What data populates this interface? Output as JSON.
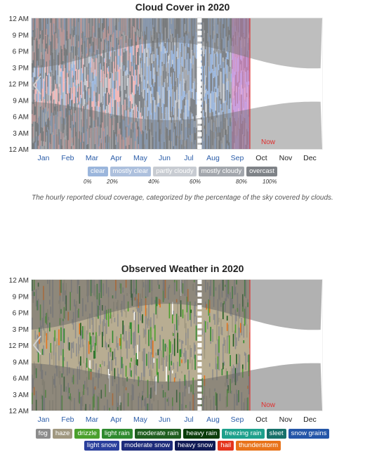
{
  "cloud_panel": {
    "title": "Cloud Cover in 2020",
    "y_tick_labels": [
      "12 AM",
      "9 PM",
      "6 PM",
      "3 PM",
      "12 PM",
      "9 AM",
      "6 AM",
      "3 AM",
      "12 AM"
    ],
    "x_tick_labels": [
      "Jan",
      "Feb",
      "Mar",
      "Apr",
      "May",
      "Jun",
      "Jul",
      "Aug",
      "Sep",
      "Oct",
      "Nov",
      "Dec"
    ],
    "now_label": "Now",
    "legend": [
      {
        "label": "clear",
        "color": "#9bb6dc"
      },
      {
        "label": "mostly clear",
        "color": "#adc0dd"
      },
      {
        "label": "partly cloudy",
        "color": "#c8ccd2"
      },
      {
        "label": "mostly cloudy",
        "color": "#a3a7ad"
      },
      {
        "label": "overcast",
        "color": "#7f8388"
      }
    ],
    "scale_labels": [
      "0%",
      "20%",
      "40%",
      "60%",
      "80%",
      "100%"
    ],
    "caption": "The hourly reported cloud coverage, categorized by the percentage of the sky covered by clouds."
  },
  "weather_panel": {
    "title": "Observed Weather in 2020",
    "y_tick_labels": [
      "12 AM",
      "9 PM",
      "6 PM",
      "3 PM",
      "12 PM",
      "9 AM",
      "6 AM",
      "3 AM",
      "12 AM"
    ],
    "x_tick_labels": [
      "Jan",
      "Feb",
      "Mar",
      "Apr",
      "May",
      "Jun",
      "Jul",
      "Aug",
      "Sep",
      "Oct",
      "Nov",
      "Dec"
    ],
    "now_label": "Now",
    "legend_row1": [
      {
        "label": "fog",
        "color": "#8c8c8c"
      },
      {
        "label": "haze",
        "color": "#a09880"
      },
      {
        "label": "drizzle",
        "color": "#4aa02c"
      },
      {
        "label": "light rain",
        "color": "#2f8a2f"
      },
      {
        "label": "moderate rain",
        "color": "#1f5e1f"
      },
      {
        "label": "heavy rain",
        "color": "#0b3d0b"
      },
      {
        "label": "freezing rain",
        "color": "#1ea08c"
      },
      {
        "label": "sleet",
        "color": "#17706a"
      },
      {
        "label": "snow grains",
        "color": "#2456a8"
      }
    ],
    "legend_row2": [
      {
        "label": "light snow",
        "color": "#2a3f9c"
      },
      {
        "label": "moderate snow",
        "color": "#1d2b7a"
      },
      {
        "label": "heavy snow",
        "color": "#101a55"
      },
      {
        "label": "hail",
        "color": "#e5341c"
      },
      {
        "label": "thunderstorm",
        "color": "#e8731a"
      }
    ]
  },
  "chart_data": [
    {
      "type": "heatmap",
      "title": "Cloud Cover in 2020",
      "x_axis": "month of year",
      "y_axis": "hour of day",
      "x_categories": [
        "Jan",
        "Feb",
        "Mar",
        "Apr",
        "May",
        "Jun",
        "Jul",
        "Aug",
        "Sep",
        "Oct",
        "Nov",
        "Dec"
      ],
      "y_tick_labels": [
        "12 AM",
        "9 PM",
        "6 PM",
        "3 PM",
        "12 PM",
        "9 AM",
        "6 AM",
        "3 AM",
        "12 AM"
      ],
      "categories": [
        "clear",
        "mostly clear",
        "partly cloudy",
        "mostly cloudy",
        "overcast"
      ],
      "category_scale_percent": [
        0,
        20,
        40,
        60,
        80,
        100
      ],
      "now_date": "2020-10-01",
      "data_gap": {
        "start": "2020-07-27",
        "end": "2020-08-01"
      },
      "data_range": {
        "start": "2020-01-01",
        "end": "2020-10-01"
      }
    },
    {
      "type": "heatmap",
      "title": "Observed Weather in 2020",
      "x_axis": "month of year",
      "y_axis": "hour of day",
      "x_categories": [
        "Jan",
        "Feb",
        "Mar",
        "Apr",
        "May",
        "Jun",
        "Jul",
        "Aug",
        "Sep",
        "Oct",
        "Nov",
        "Dec"
      ],
      "y_tick_labels": [
        "12 AM",
        "9 PM",
        "6 PM",
        "3 PM",
        "12 PM",
        "9 AM",
        "6 AM",
        "3 AM",
        "12 AM"
      ],
      "categories": [
        "fog",
        "haze",
        "drizzle",
        "light rain",
        "moderate rain",
        "heavy rain",
        "freezing rain",
        "sleet",
        "snow grains",
        "light snow",
        "moderate snow",
        "heavy snow",
        "hail",
        "thunderstorm"
      ],
      "now_date": "2020-10-01",
      "data_gap": {
        "start": "2020-07-27",
        "end": "2020-08-01"
      },
      "data_range": {
        "start": "2020-01-01",
        "end": "2020-10-01"
      }
    }
  ]
}
